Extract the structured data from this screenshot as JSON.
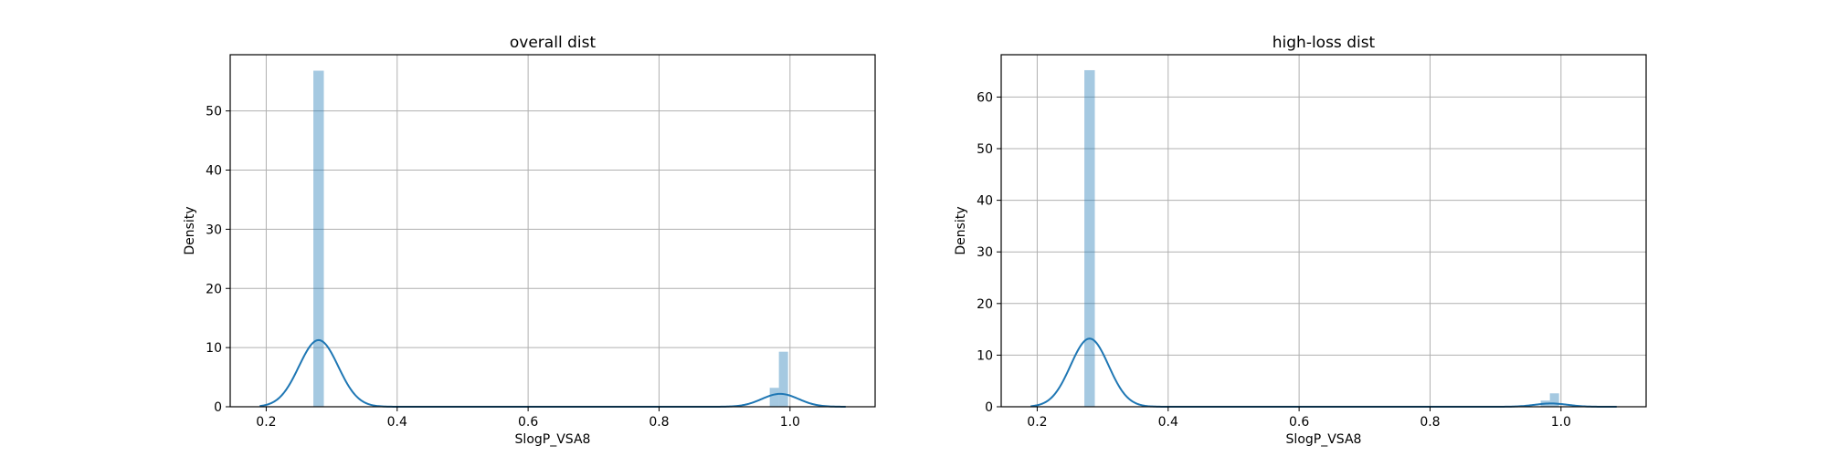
{
  "colors": {
    "bar": "#1f77b4",
    "kde": "#1f77b4",
    "grid": "#b0b0b0"
  },
  "chart_data": [
    {
      "type": "histogram",
      "title": "overall dist",
      "xlabel": "SlogP_VSA8",
      "ylabel": "Density",
      "xlim": [
        0.145,
        1.13
      ],
      "ylim": [
        0,
        59.5
      ],
      "xticks": [
        0.2,
        0.4,
        0.6,
        0.8,
        1.0
      ],
      "xtick_labels": [
        "0.2",
        "0.4",
        "0.6",
        "0.8",
        "1.0"
      ],
      "yticks": [
        0,
        10,
        20,
        30,
        40,
        50
      ],
      "ytick_labels": [
        "0",
        "10",
        "20",
        "30",
        "40",
        "50"
      ],
      "grid": true,
      "bins": [
        {
          "x0": 0.272,
          "x1": 0.288,
          "density": 56.8
        },
        {
          "x0": 0.969,
          "x1": 0.983,
          "density": 3.2
        },
        {
          "x0": 0.983,
          "x1": 0.997,
          "density": 9.3
        }
      ],
      "kde": [
        {
          "center": 0.28,
          "weight": 0.847,
          "sigma": 0.03
        },
        {
          "center": 0.985,
          "weight": 0.153,
          "sigma": 0.028
        }
      ],
      "kde_range": [
        0.19,
        1.085
      ]
    },
    {
      "type": "histogram",
      "title": "high-loss dist",
      "xlabel": "SlogP_VSA8",
      "ylabel": "Density",
      "xlim": [
        0.145,
        1.13
      ],
      "ylim": [
        0,
        68.2
      ],
      "xticks": [
        0.2,
        0.4,
        0.6,
        0.8,
        1.0
      ],
      "xtick_labels": [
        "0.2",
        "0.4",
        "0.6",
        "0.8",
        "1.0"
      ],
      "yticks": [
        0,
        10,
        20,
        30,
        40,
        50,
        60
      ],
      "ytick_labels": [
        "0",
        "10",
        "20",
        "30",
        "40",
        "50",
        "60"
      ],
      "grid": true,
      "bins": [
        {
          "x0": 0.272,
          "x1": 0.288,
          "density": 65.2
        },
        {
          "x0": 0.969,
          "x1": 0.983,
          "density": 1.2
        },
        {
          "x0": 0.983,
          "x1": 0.997,
          "density": 2.6
        }
      ],
      "kde": [
        {
          "center": 0.28,
          "weight": 0.96,
          "sigma": 0.029
        },
        {
          "center": 0.985,
          "weight": 0.04,
          "sigma": 0.025
        }
      ],
      "kde_range": [
        0.19,
        1.085
      ]
    }
  ]
}
